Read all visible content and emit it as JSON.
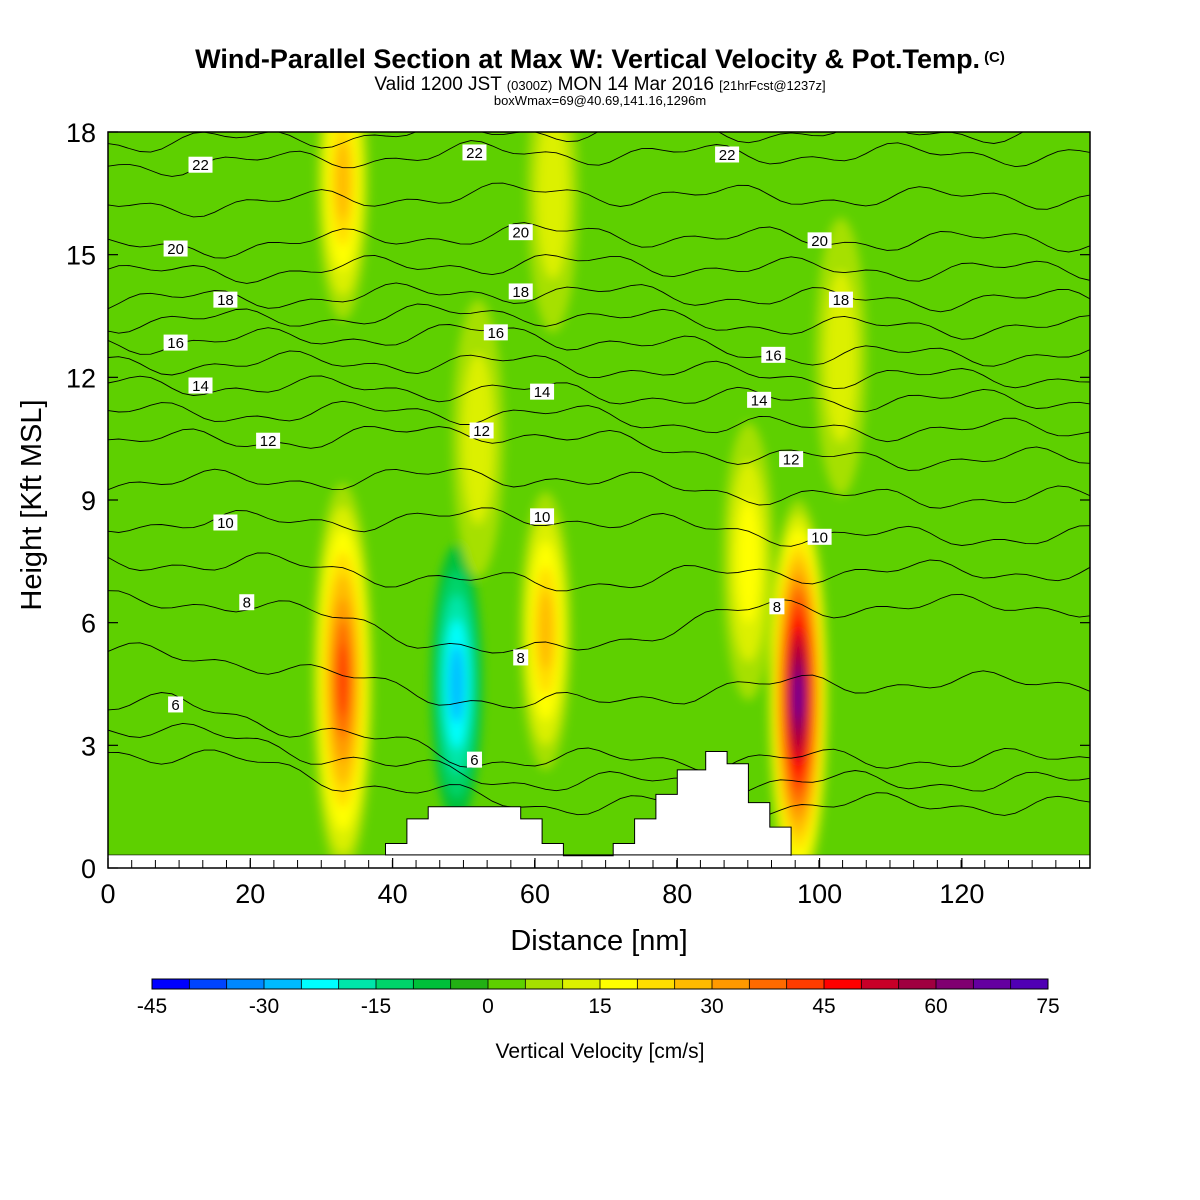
{
  "header": {
    "title": "Wind-Parallel Section at Max W: Vertical Velocity & Pot.Temp.",
    "title_mark": "(C)",
    "valid_main": "Valid 1200 JST",
    "valid_utc": "(0300Z)",
    "valid_date": "MON 14 Mar 2016",
    "forecast": "[21hrFcst@1237z]",
    "box_info": "boxWmax=69@40.69,141.16,1296m"
  },
  "chart_data": {
    "type": "contour",
    "xlabel": "Distance [nm]",
    "ylabel": "Height [Kft MSL]",
    "xlim": [
      0,
      138
    ],
    "ylim": [
      0,
      18
    ],
    "xticks": [
      0,
      20,
      40,
      60,
      80,
      100,
      120
    ],
    "yticks": [
      0,
      3,
      6,
      9,
      12,
      15,
      18
    ],
    "colorbar": {
      "label": "Vertical Velocity [cm/s]",
      "min": -45,
      "max": 75,
      "step": 5,
      "tick_labels": [
        -45,
        -30,
        -15,
        0,
        15,
        30,
        45,
        60,
        75
      ],
      "colors": [
        "#0000ff",
        "#0044ff",
        "#0088ff",
        "#00bbff",
        "#00ffff",
        "#00e6aa",
        "#00d46a",
        "#00c03a",
        "#22b014",
        "#5ed000",
        "#a6e000",
        "#dcf000",
        "#ffff00",
        "#ffdd00",
        "#ffbb00",
        "#ff9900",
        "#ff6a00",
        "#ff3c00",
        "#ff0000",
        "#c80028",
        "#a00040",
        "#800070",
        "#6400a0",
        "#5000b4"
      ]
    },
    "vertical_velocity_extrema": [
      {
        "x": 33,
        "y": 4.6,
        "value": 42
      },
      {
        "x": 33,
        "y": 16.8,
        "value": 25
      },
      {
        "x": 49,
        "y": 4.5,
        "value": -25
      },
      {
        "x": 52,
        "y": 10.5,
        "value": 14
      },
      {
        "x": 61.5,
        "y": 5.8,
        "value": 25
      },
      {
        "x": 62.5,
        "y": 16.5,
        "value": 14
      },
      {
        "x": 90,
        "y": 7.5,
        "value": 16
      },
      {
        "x": 97,
        "y": 4.2,
        "value": 69
      },
      {
        "x": 103,
        "y": 12.5,
        "value": 10
      }
    ],
    "theta_labels": [
      {
        "text": "22",
        "x": 13,
        "y": 17.2
      },
      {
        "text": "22",
        "x": 51.5,
        "y": 17.5
      },
      {
        "text": "22",
        "x": 87,
        "y": 17.45
      },
      {
        "text": "20",
        "x": 9.5,
        "y": 15.15
      },
      {
        "text": "20",
        "x": 58,
        "y": 15.55
      },
      {
        "text": "20",
        "x": 100,
        "y": 15.35
      },
      {
        "text": "18",
        "x": 16.5,
        "y": 13.9
      },
      {
        "text": "18",
        "x": 58,
        "y": 14.1
      },
      {
        "text": "18",
        "x": 103,
        "y": 13.9
      },
      {
        "text": "16",
        "x": 9.5,
        "y": 12.85
      },
      {
        "text": "16",
        "x": 54.5,
        "y": 13.1
      },
      {
        "text": "16",
        "x": 93.5,
        "y": 12.55
      },
      {
        "text": "14",
        "x": 13,
        "y": 11.8
      },
      {
        "text": "14",
        "x": 61,
        "y": 11.65
      },
      {
        "text": "14",
        "x": 91.5,
        "y": 11.45
      },
      {
        "text": "12",
        "x": 22.5,
        "y": 10.45
      },
      {
        "text": "12",
        "x": 52.5,
        "y": 10.7
      },
      {
        "text": "12",
        "x": 96,
        "y": 10.0
      },
      {
        "text": "10",
        "x": 16.5,
        "y": 8.45
      },
      {
        "text": "10",
        "x": 61,
        "y": 8.6
      },
      {
        "text": "10",
        "x": 100,
        "y": 8.1
      },
      {
        "text": "8",
        "x": 19.5,
        "y": 6.5
      },
      {
        "text": "8",
        "x": 58,
        "y": 5.15
      },
      {
        "text": "8",
        "x": 94,
        "y": 6.4
      },
      {
        "text": "6",
        "x": 9.5,
        "y": 4.0
      },
      {
        "text": "6",
        "x": 51.5,
        "y": 2.65
      }
    ],
    "terrain": [
      [
        39,
        0.6
      ],
      [
        42,
        0.6
      ],
      [
        42,
        1.2
      ],
      [
        45,
        1.2
      ],
      [
        45,
        1.5
      ],
      [
        58,
        1.5
      ],
      [
        58,
        1.2
      ],
      [
        61,
        1.2
      ],
      [
        61,
        0.6
      ],
      [
        64,
        0.6
      ],
      [
        64,
        0.3
      ],
      [
        71,
        0.3
      ],
      [
        71,
        0.6
      ],
      [
        74,
        0.6
      ],
      [
        74,
        1.2
      ],
      [
        77,
        1.2
      ],
      [
        77,
        1.8
      ],
      [
        80,
        1.8
      ],
      [
        80,
        2.4
      ],
      [
        84,
        2.4
      ],
      [
        84,
        2.85
      ],
      [
        87,
        2.85
      ],
      [
        87,
        2.55
      ],
      [
        90,
        2.55
      ],
      [
        90,
        1.6
      ],
      [
        93,
        1.6
      ],
      [
        93,
        1.0
      ],
      [
        96,
        1.0
      ],
      [
        96,
        0.3
      ]
    ]
  }
}
